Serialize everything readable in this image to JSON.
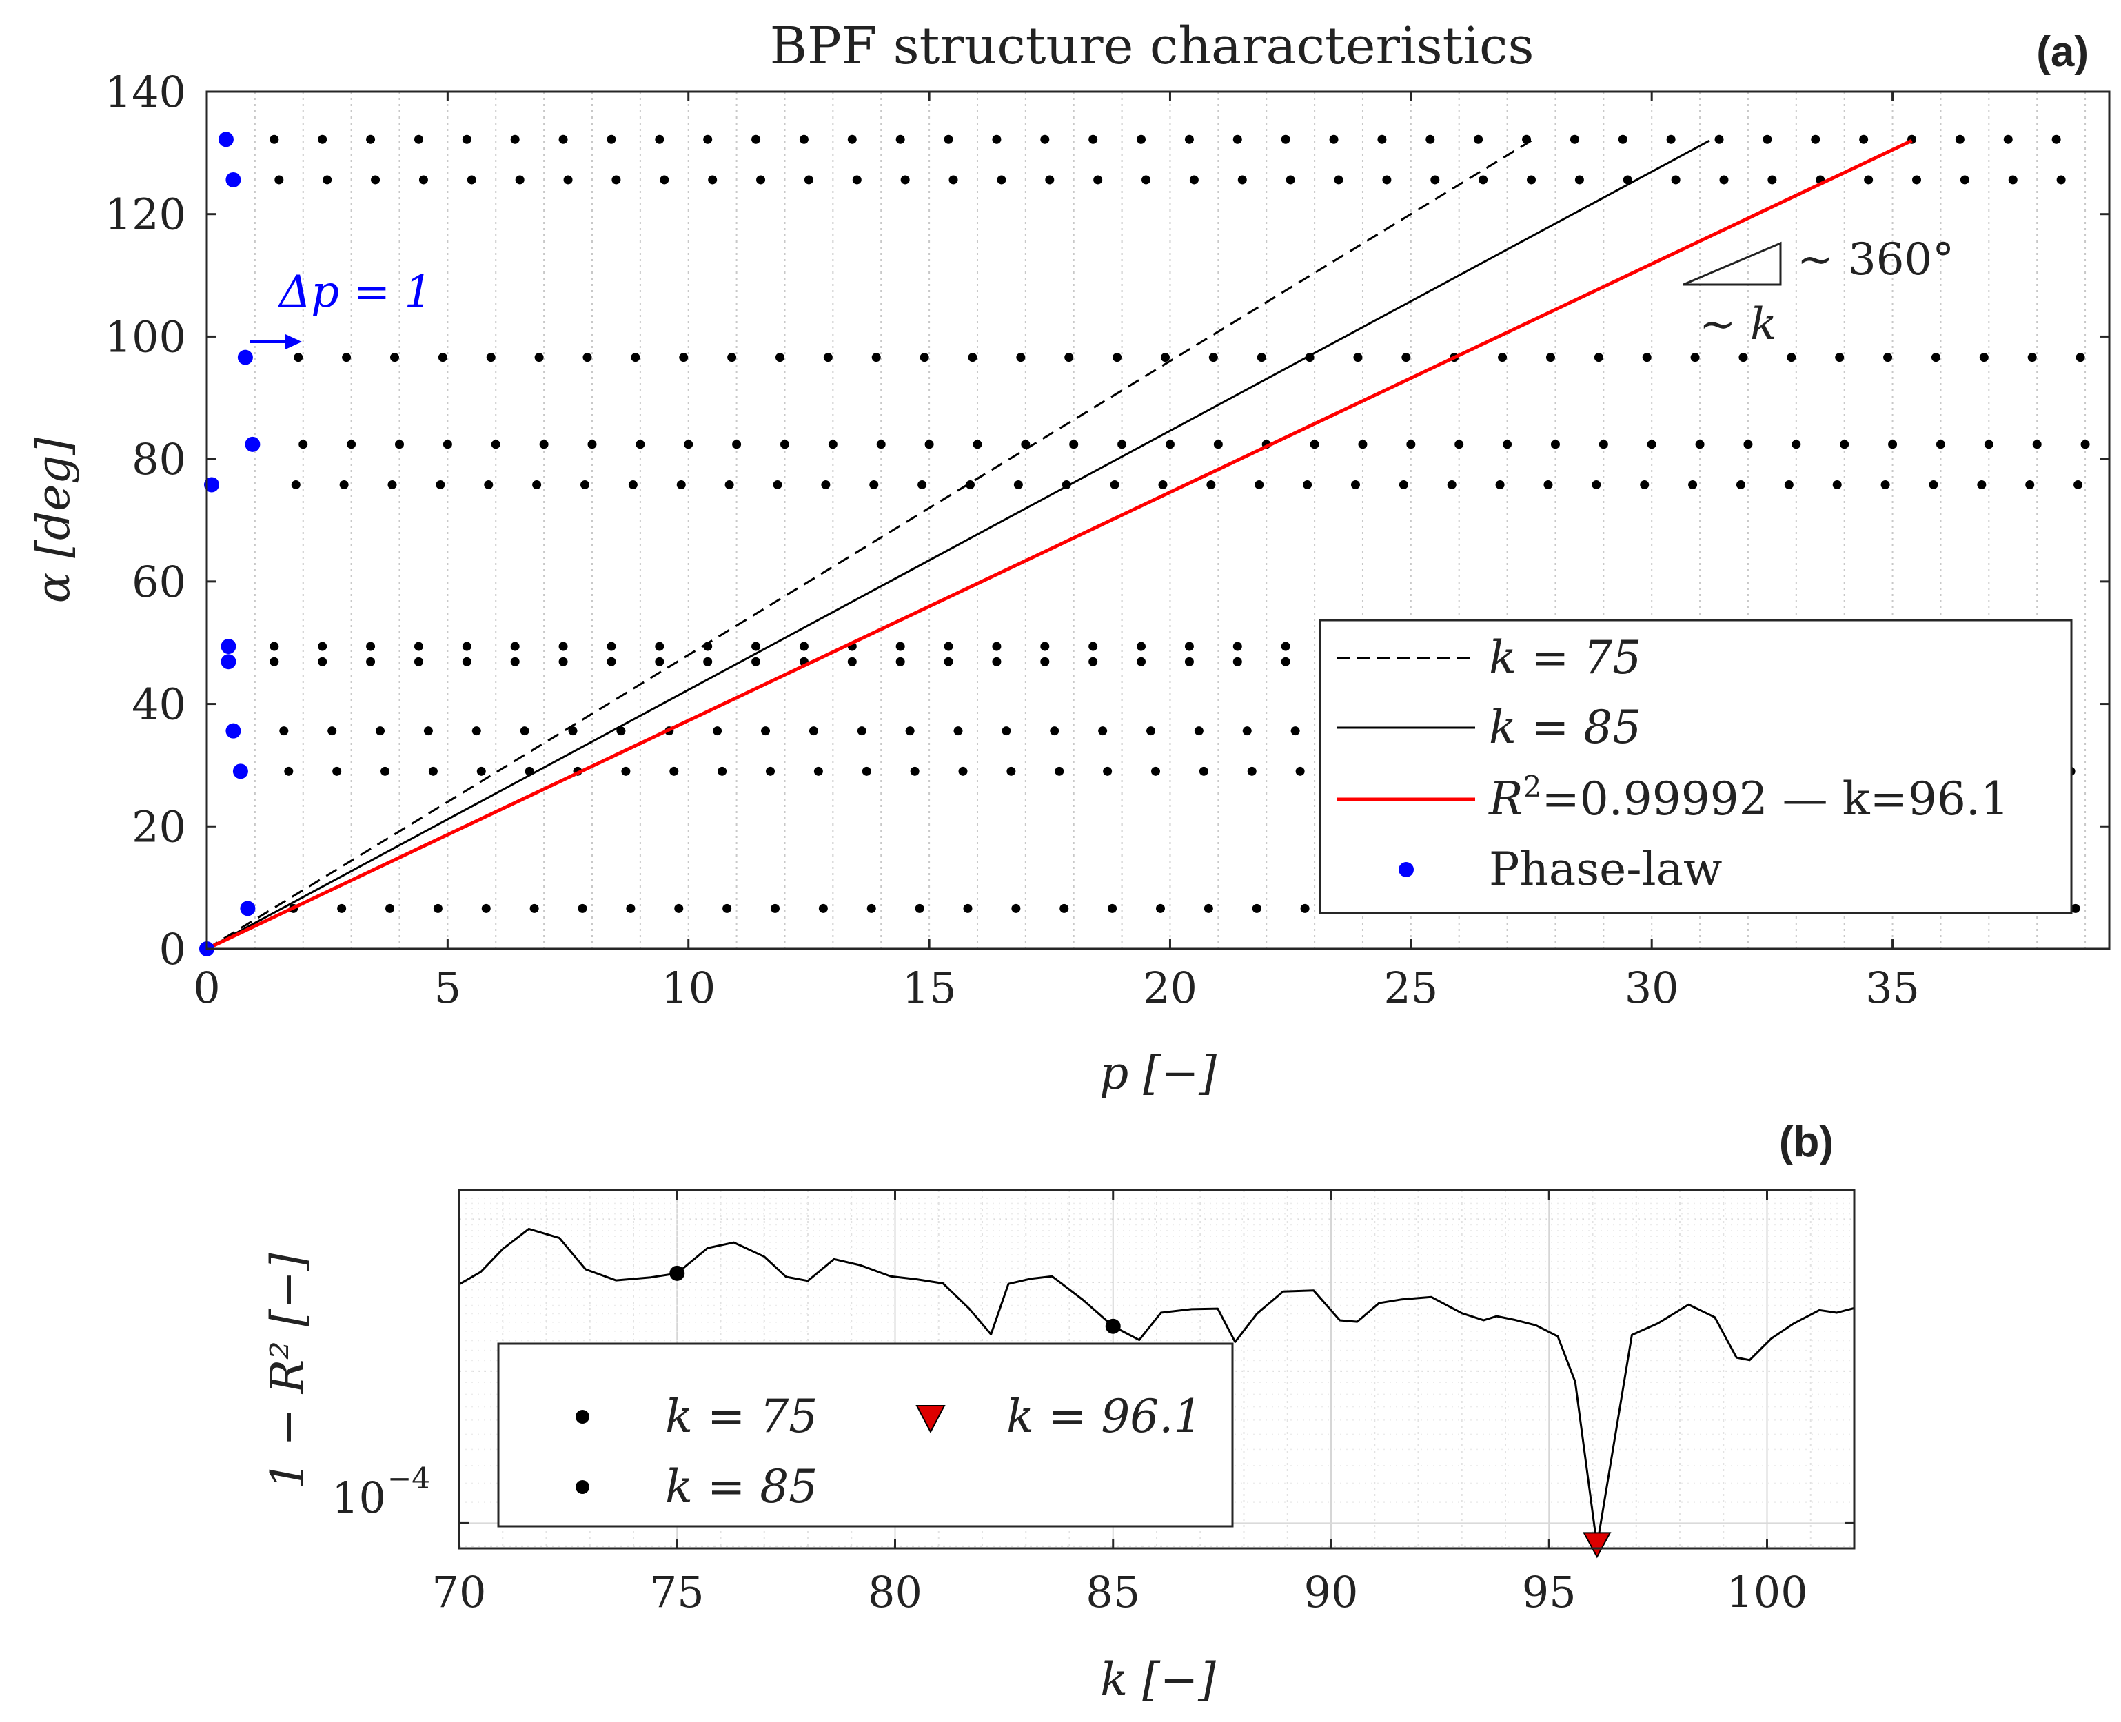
{
  "chart_data": [
    {
      "type": "scatter",
      "title": "BPF structure characteristics",
      "panel_label": "(a)",
      "xlabel": "p [−]",
      "ylabel": "α [deg]",
      "xlim": [
        0,
        39.5
      ],
      "ylim": [
        0,
        140
      ],
      "xticks": [
        0,
        5,
        10,
        15,
        20,
        25,
        30,
        35
      ],
      "yticks": [
        0,
        20,
        40,
        60,
        80,
        100,
        120,
        140
      ],
      "grid": "vertical minor dotted",
      "legend_position": "lower-right",
      "annotations": [
        "Δp = 1",
        "∼ 360°",
        "∼ k"
      ],
      "series": [
        {
          "name": "k = 75",
          "style": "dashed",
          "color": "#000000",
          "x": [
            0,
            27.5
          ],
          "y": [
            0,
            132
          ]
        },
        {
          "name": "k = 85",
          "style": "solid",
          "color": "#000000",
          "x": [
            0,
            31.2
          ],
          "y": [
            0,
            132
          ]
        },
        {
          "name": "R²=0.99992 — k=96.1",
          "legend_parts": [
            "R",
            "2",
            "=0.99992 — k=96.1"
          ],
          "style": "solid",
          "color": "#ff0000",
          "x": [
            0,
            35.4
          ],
          "y": [
            0,
            132
          ]
        },
        {
          "name": "Phase-law",
          "style": "markers",
          "color": "#0000ff",
          "x": [
            0,
            0.4,
            0.55,
            0.8,
            0.95,
            0.1,
            0.45,
            0.45,
            0.55,
            0.7,
            0.85
          ],
          "y": [
            0,
            132.2,
            125.6,
            96.6,
            82.4,
            75.8,
            49.4,
            46.9,
            35.6,
            29.0,
            6.6
          ]
        }
      ],
      "lattice_rows": [
        {
          "alpha": 132.2,
          "start": 1.4,
          "step": 1.0
        },
        {
          "alpha": 125.6,
          "start": 1.5,
          "step": 1.0
        },
        {
          "alpha": 96.6,
          "start": 1.9,
          "step": 1.0
        },
        {
          "alpha": 82.4,
          "start": 2.0,
          "step": 1.0
        },
        {
          "alpha": 75.8,
          "start": 1.85,
          "step": 1.0
        },
        {
          "alpha": 49.4,
          "start": 1.4,
          "step": 1.0
        },
        {
          "alpha": 46.9,
          "start": 1.4,
          "step": 1.0
        },
        {
          "alpha": 35.6,
          "start": 1.6,
          "step": 1.0
        },
        {
          "alpha": 29.0,
          "start": 1.7,
          "step": 1.0
        },
        {
          "alpha": 6.6,
          "start": 1.8,
          "step": 1.0
        }
      ]
    },
    {
      "type": "line",
      "panel_label": "(b)",
      "xlabel": "k [−]",
      "ylabel": "1 − R² [−]",
      "xlim": [
        70,
        102
      ],
      "ylim_log10": [
        -4.05,
        -3.34
      ],
      "yscale": "log",
      "xticks": [
        70,
        75,
        80,
        85,
        90,
        95,
        100
      ],
      "ytick_label": "10",
      "ytick_exponent": "−4",
      "grid": "major and minor",
      "legend_position": "lower-left",
      "series": [
        {
          "name": "1 − R²",
          "color": "#000000",
          "x": [
            70,
            70.5,
            71,
            71.6,
            72.3,
            72.9,
            73.6,
            74.4,
            75,
            75.7,
            76.3,
            77,
            77.5,
            78,
            78.6,
            79.2,
            79.9,
            80.5,
            81.1,
            81.7,
            82.2,
            82.6,
            83.1,
            83.6,
            84.3,
            85,
            85.6,
            86.1,
            86.8,
            87.4,
            87.8,
            88.3,
            88.9,
            89.6,
            90.2,
            90.6,
            91.1,
            91.6,
            92.3,
            93,
            93.5,
            93.8,
            94.2,
            94.7,
            95.2,
            95.6,
            96.1,
            96.9,
            97.5,
            98.2,
            98.8,
            99.3,
            99.6,
            100.1,
            100.6,
            101.2,
            101.6,
            102
          ],
          "y_log10": [
            -3.527,
            -3.502,
            -3.457,
            -3.417,
            -3.435,
            -3.497,
            -3.519,
            -3.513,
            -3.505,
            -3.455,
            -3.444,
            -3.472,
            -3.512,
            -3.52,
            -3.477,
            -3.489,
            -3.511,
            -3.517,
            -3.525,
            -3.575,
            -3.626,
            -3.526,
            -3.516,
            -3.511,
            -3.557,
            -3.61,
            -3.637,
            -3.583,
            -3.576,
            -3.575,
            -3.641,
            -3.585,
            -3.541,
            -3.539,
            -3.598,
            -3.601,
            -3.564,
            -3.557,
            -3.552,
            -3.584,
            -3.598,
            -3.59,
            -3.597,
            -3.608,
            -3.63,
            -3.72,
            -4.045,
            -3.627,
            -3.604,
            -3.567,
            -3.592,
            -3.672,
            -3.677,
            -3.634,
            -3.605,
            -3.578,
            -3.583,
            -3.574
          ]
        },
        {
          "name": "k = 75",
          "style": "marker-circle",
          "color": "#000000",
          "x": [
            75
          ],
          "y_log10": [
            -3.505
          ]
        },
        {
          "name": "k = 85",
          "style": "marker-circle",
          "color": "#000000",
          "x": [
            85
          ],
          "y_log10": [
            -3.61
          ]
        },
        {
          "name": "k = 96.1",
          "style": "marker-triangle",
          "color": "#dd0000",
          "x": [
            96.1
          ],
          "y_log10": [
            -4.045
          ]
        }
      ]
    }
  ]
}
